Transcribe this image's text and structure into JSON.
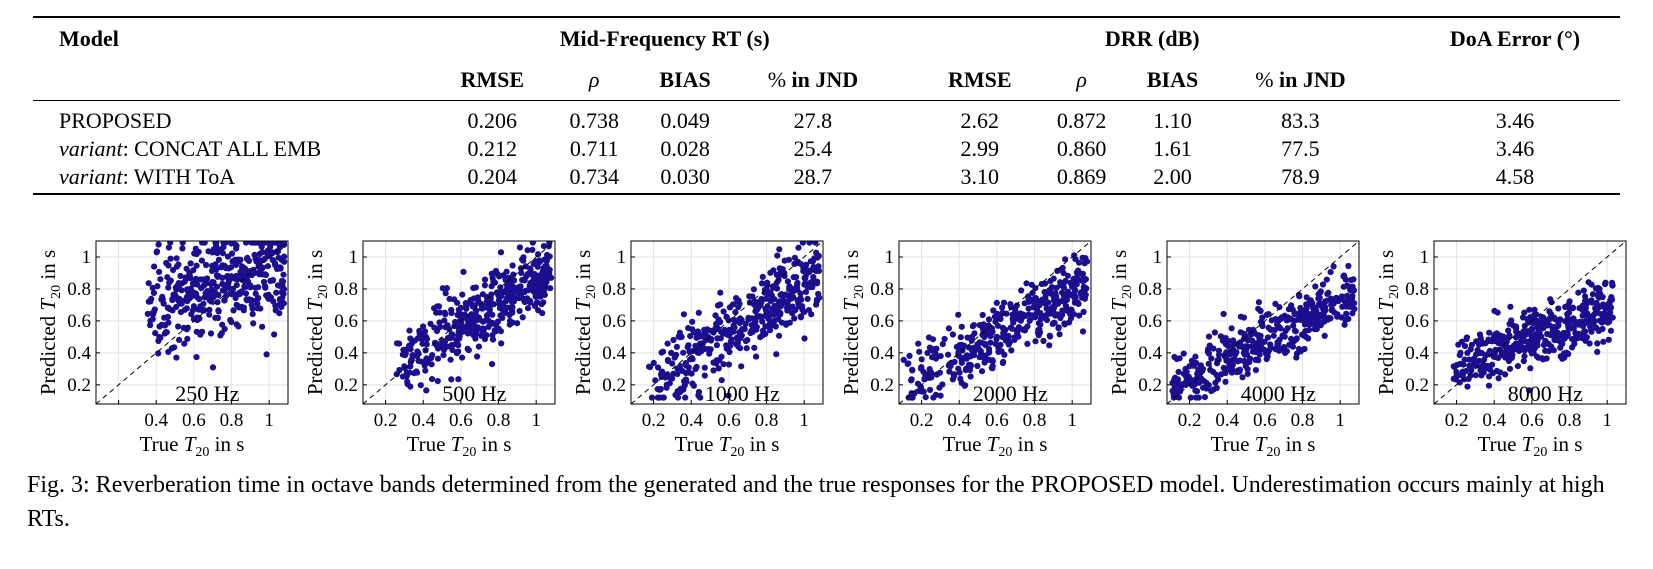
{
  "table": {
    "header": {
      "model": "Model",
      "group_rt": "Mid-Frequency RT (s)",
      "group_drr": "DRR (dB)",
      "doa": "DoA Error (°)",
      "sub": {
        "rmse": "RMSE",
        "rho": "ρ",
        "bias": "BIAS",
        "pct_prefix": "% ",
        "pct_suffix": "in JND"
      }
    },
    "rows": [
      {
        "prefix": "",
        "model": "PROPOSED",
        "rt_rmse": "0.206",
        "rt_rho": "0.738",
        "rt_bias": "0.049",
        "rt_jnd": "27.8",
        "drr_rmse": "2.62",
        "drr_rho": "0.872",
        "drr_bias": "1.10",
        "drr_jnd": "83.3",
        "doa": "3.46"
      },
      {
        "prefix": "variant",
        "model": ": CONCAT ALL EMB",
        "rt_rmse": "0.212",
        "rt_rho": "0.711",
        "rt_bias": "0.028",
        "rt_jnd": "25.4",
        "drr_rmse": "2.99",
        "drr_rho": "0.860",
        "drr_bias": "1.61",
        "drr_jnd": "77.5",
        "doa": "3.46"
      },
      {
        "prefix": "variant",
        "model": ": WITH ToA",
        "rt_rmse": "0.204",
        "rt_rho": "0.734",
        "rt_bias": "0.030",
        "rt_jnd": "28.7",
        "drr_rmse": "3.10",
        "drr_rho": "0.869",
        "drr_bias": "2.00",
        "drr_jnd": "78.9",
        "doa": "4.58"
      }
    ]
  },
  "chart_data": [
    {
      "type": "scatter",
      "title": "250 Hz",
      "xlabel": "True T20 in s",
      "ylabel": "Predicted T20 in s",
      "xlim": [
        0.08,
        1.1
      ],
      "ylim": [
        0.08,
        1.1
      ],
      "xticks": [
        0.2,
        0.4,
        0.6,
        0.8,
        1
      ],
      "yticks": [
        0.2,
        0.4,
        0.6,
        0.8,
        1
      ],
      "tick_labels": [
        "0.2",
        "0.4",
        "0.6",
        "0.8",
        "1"
      ],
      "x_tick_labels": [
        "",
        "0.4",
        "0.6",
        "0.8",
        "1"
      ],
      "grid": true,
      "diagonal": true,
      "color": "#1b0f8f",
      "cloud": {
        "x_range": [
          0.35,
          1.08
        ],
        "y_center": 0.82,
        "y_slope": 0.35,
        "spread": 0.15
      }
    },
    {
      "type": "scatter",
      "title": "500 Hz",
      "xlabel": "True T20 in s",
      "ylabel": "Predicted T20 in s",
      "xlim": [
        0.08,
        1.1
      ],
      "ylim": [
        0.08,
        1.1
      ],
      "xticks": [
        0.2,
        0.4,
        0.6,
        0.8,
        1
      ],
      "yticks": [
        0.2,
        0.4,
        0.6,
        0.8,
        1
      ],
      "tick_labels": [
        "0.2",
        "0.4",
        "0.6",
        "0.8",
        "1"
      ],
      "x_tick_labels": [
        "0.2",
        "0.4",
        "0.6",
        "0.8",
        "1"
      ],
      "grid": true,
      "diagonal": true,
      "color": "#1b0f8f",
      "cloud": {
        "x_range": [
          0.25,
          1.08
        ],
        "y_center": 0.62,
        "y_slope": 0.7,
        "spread": 0.12
      }
    },
    {
      "type": "scatter",
      "title": "1000 Hz",
      "xlabel": "True T20 in s",
      "ylabel": "Predicted T20 in s",
      "xlim": [
        0.08,
        1.1
      ],
      "ylim": [
        0.08,
        1.1
      ],
      "xticks": [
        0.2,
        0.4,
        0.6,
        0.8,
        1
      ],
      "yticks": [
        0.2,
        0.4,
        0.6,
        0.8,
        1
      ],
      "tick_labels": [
        "0.2",
        "0.4",
        "0.6",
        "0.8",
        "1"
      ],
      "x_tick_labels": [
        "0.2",
        "0.4",
        "0.6",
        "0.8",
        "1"
      ],
      "grid": true,
      "diagonal": true,
      "color": "#1b0f8f",
      "cloud": {
        "x_range": [
          0.17,
          1.08
        ],
        "y_center": 0.55,
        "y_slope": 0.75,
        "spread": 0.12
      }
    },
    {
      "type": "scatter",
      "title": "2000 Hz",
      "xlabel": "True T20 in s",
      "ylabel": "Predicted T20 in s",
      "xlim": [
        0.08,
        1.1
      ],
      "ylim": [
        0.08,
        1.1
      ],
      "xticks": [
        0.2,
        0.4,
        0.6,
        0.8,
        1
      ],
      "yticks": [
        0.2,
        0.4,
        0.6,
        0.8,
        1
      ],
      "tick_labels": [
        "0.2",
        "0.4",
        "0.6",
        "0.8",
        "1"
      ],
      "x_tick_labels": [
        "0.2",
        "0.4",
        "0.6",
        "0.8",
        "1"
      ],
      "grid": true,
      "diagonal": true,
      "color": "#1b0f8f",
      "cloud": {
        "x_range": [
          0.1,
          1.08
        ],
        "y_center": 0.5,
        "y_slope": 0.65,
        "spread": 0.1
      }
    },
    {
      "type": "scatter",
      "title": "4000 Hz",
      "xlabel": "True T20 in s",
      "ylabel": "Predicted T20 in s",
      "xlim": [
        0.08,
        1.1
      ],
      "ylim": [
        0.08,
        1.1
      ],
      "xticks": [
        0.2,
        0.4,
        0.6,
        0.8,
        1
      ],
      "yticks": [
        0.2,
        0.4,
        0.6,
        0.8,
        1
      ],
      "tick_labels": [
        "0.2",
        "0.4",
        "0.6",
        "0.8",
        "1"
      ],
      "x_tick_labels": [
        "0.2",
        "0.4",
        "0.6",
        "0.8",
        "1"
      ],
      "grid": true,
      "diagonal": true,
      "color": "#1b0f8f",
      "cloud": {
        "x_range": [
          0.1,
          1.08
        ],
        "y_center": 0.48,
        "y_slope": 0.6,
        "spread": 0.09
      }
    },
    {
      "type": "scatter",
      "title": "8000 Hz",
      "xlabel": "True T20 in s",
      "ylabel": "Predicted T20 in s",
      "xlim": [
        0.08,
        1.1
      ],
      "ylim": [
        0.08,
        1.1
      ],
      "xticks": [
        0.2,
        0.4,
        0.6,
        0.8,
        1
      ],
      "yticks": [
        0.2,
        0.4,
        0.6,
        0.8,
        1
      ],
      "tick_labels": [
        "0.2",
        "0.4",
        "0.6",
        "0.8",
        "1"
      ],
      "x_tick_labels": [
        "0.2",
        "0.4",
        "0.6",
        "0.8",
        "1"
      ],
      "grid": true,
      "diagonal": true,
      "color": "#1b0f8f",
      "cloud": {
        "x_range": [
          0.18,
          1.03
        ],
        "y_center": 0.5,
        "y_slope": 0.45,
        "spread": 0.09
      }
    }
  ],
  "caption": "Fig. 3: Reverberation time in octave bands determined from the generated and the true responses for the PROPOSED model. Underestimation occurs mainly at high RTs."
}
